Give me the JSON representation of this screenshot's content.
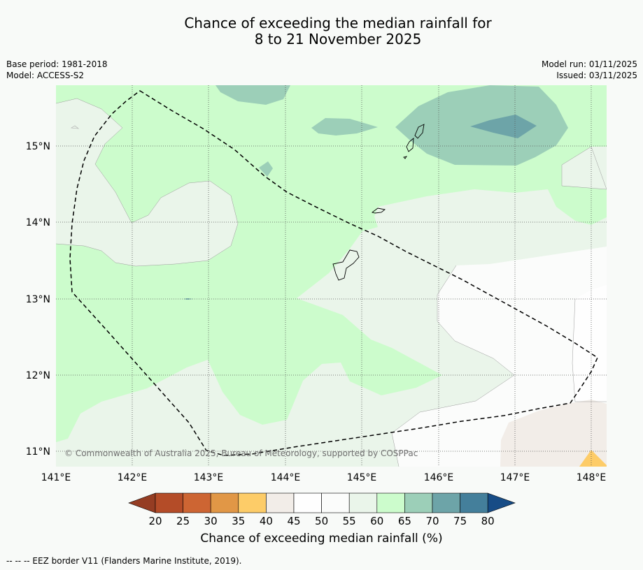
{
  "title": {
    "line1": "Chance of exceeding the median rainfall for",
    "line2": "8 to 21 November 2025"
  },
  "meta": {
    "base_period": "Base period: 1981-2018",
    "model": "Model: ACCESS-S2",
    "model_run": "Model run: 01/11/2025",
    "issued": "Issued: 03/11/2025"
  },
  "axes": {
    "lon_labels": [
      "141°E",
      "142°E",
      "143°E",
      "144°E",
      "145°E",
      "146°E",
      "147°E",
      "148°E"
    ],
    "lat_labels": [
      "15°N",
      "14°N",
      "13°N",
      "12°N",
      "11°N"
    ]
  },
  "copyright": "© Commonwealth of Australia 2025, Bureau of Meteorology, supported by COSPPac",
  "colorbar": {
    "title": "Chance of exceeding median rainfall (%)",
    "ticks": [
      "20",
      "25",
      "30",
      "35",
      "40",
      "45",
      "50",
      "55",
      "60",
      "65",
      "70",
      "75",
      "80"
    ],
    "colors": {
      "below20": "#953d23",
      "b20_25": "#b44c28",
      "b25_30": "#cd6533",
      "b30_35": "#e19746",
      "b35_40": "#fdcc68",
      "b40_45": "#f2ede8",
      "b45_50": "#fefefe",
      "b50_55": "#fbfcfb",
      "b55_60": "#eaf5ea",
      "b60_65": "#ccfccc",
      "b65_70": "#9ccfb8",
      "b70_75": "#6da4a8",
      "b75_80": "#447f9b",
      "above80": "#174c86"
    }
  },
  "footnote": "-- -- -- EEZ border V11 (Flanders Marine Institute, 2019)."
}
